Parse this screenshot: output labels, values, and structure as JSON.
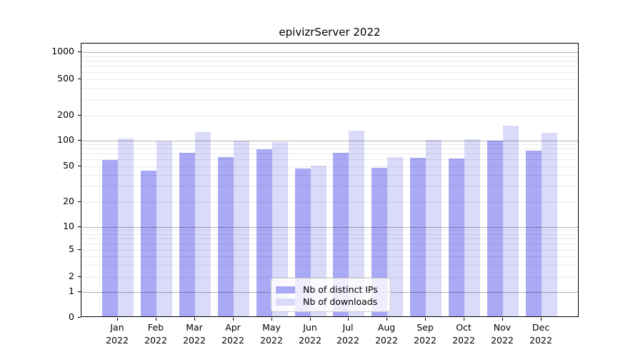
{
  "title": "epivizrServer 2022",
  "chart_data": {
    "type": "bar",
    "title": "epivizrServer 2022",
    "categories": [
      "Jan 2022",
      "Feb 2022",
      "Mar 2022",
      "Apr 2022",
      "May 2022",
      "Jun 2022",
      "Jul 2022",
      "Aug 2022",
      "Sep 2022",
      "Oct 2022",
      "Nov 2022",
      "Dec 2022"
    ],
    "x_months": [
      "Jan",
      "Feb",
      "Mar",
      "Apr",
      "May",
      "Jun",
      "Jul",
      "Aug",
      "Sep",
      "Oct",
      "Nov",
      "Dec"
    ],
    "x_year": "2022",
    "series": [
      {
        "name": "Nb of distinct IPs",
        "color": "#a9a9f6",
        "values": [
          57,
          43,
          69,
          62,
          76,
          45,
          69,
          46,
          60,
          59,
          96,
          74
        ]
      },
      {
        "name": "Nb of downloads",
        "color": "#dadaf9",
        "values": [
          102,
          94,
          122,
          96,
          93,
          49,
          126,
          61,
          99,
          101,
          147,
          120
        ]
      }
    ],
    "xlabel": "",
    "ylabel": "",
    "yscale": "symlog",
    "ylim": [
      0,
      1000
    ],
    "y_ticks": [
      0,
      1,
      2,
      5,
      10,
      20,
      50,
      100,
      200,
      500,
      1000
    ],
    "grid": true,
    "legend_position": "bottom-center"
  },
  "colors": {
    "bar_distinct_ips": "#a9a9f6",
    "bar_downloads": "#dadaf9",
    "frame": "#000000",
    "grid_major": "#b3b3b3",
    "grid_minor": "#ebebeb",
    "legend_border": "#cccccc",
    "background": "#ffffff"
  }
}
